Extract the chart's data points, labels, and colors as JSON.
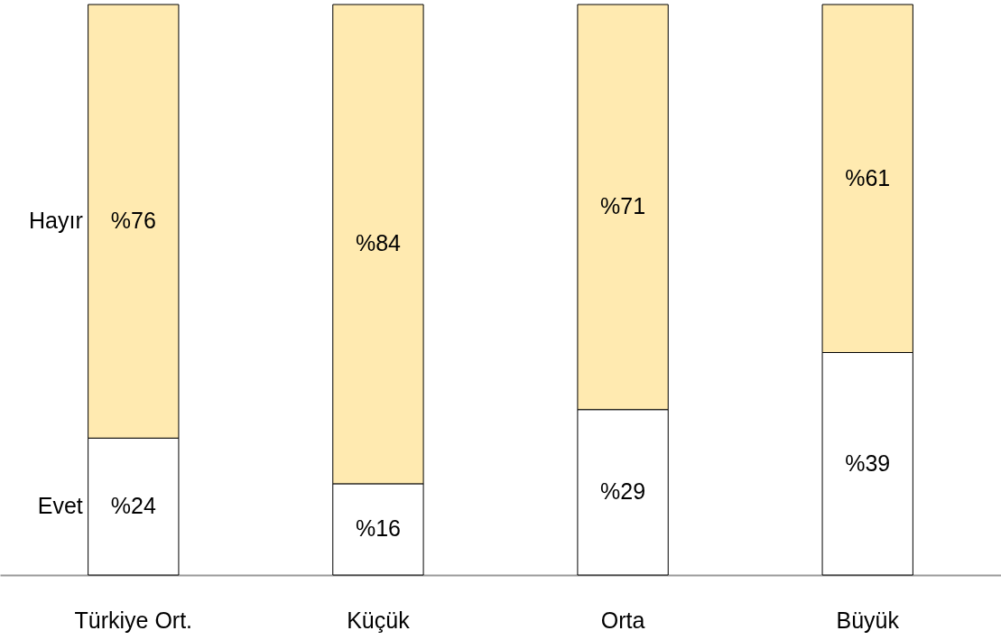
{
  "chart_data": {
    "type": "bar",
    "stacked": true,
    "categories": [
      "Türkiye Ort.",
      "Küçük",
      "Orta",
      "Büyük"
    ],
    "series": [
      {
        "name": "Evet",
        "color": "#ffffff",
        "values": [
          24,
          16,
          29,
          39
        ],
        "value_labels": [
          "%24",
          "%16",
          "%29",
          "%39"
        ]
      },
      {
        "name": "Hayır",
        "color": "#ffeab0",
        "values": [
          76,
          84,
          71,
          61
        ],
        "value_labels": [
          "%76",
          "%84",
          "%71",
          "%61"
        ]
      }
    ],
    "grid": false
  }
}
